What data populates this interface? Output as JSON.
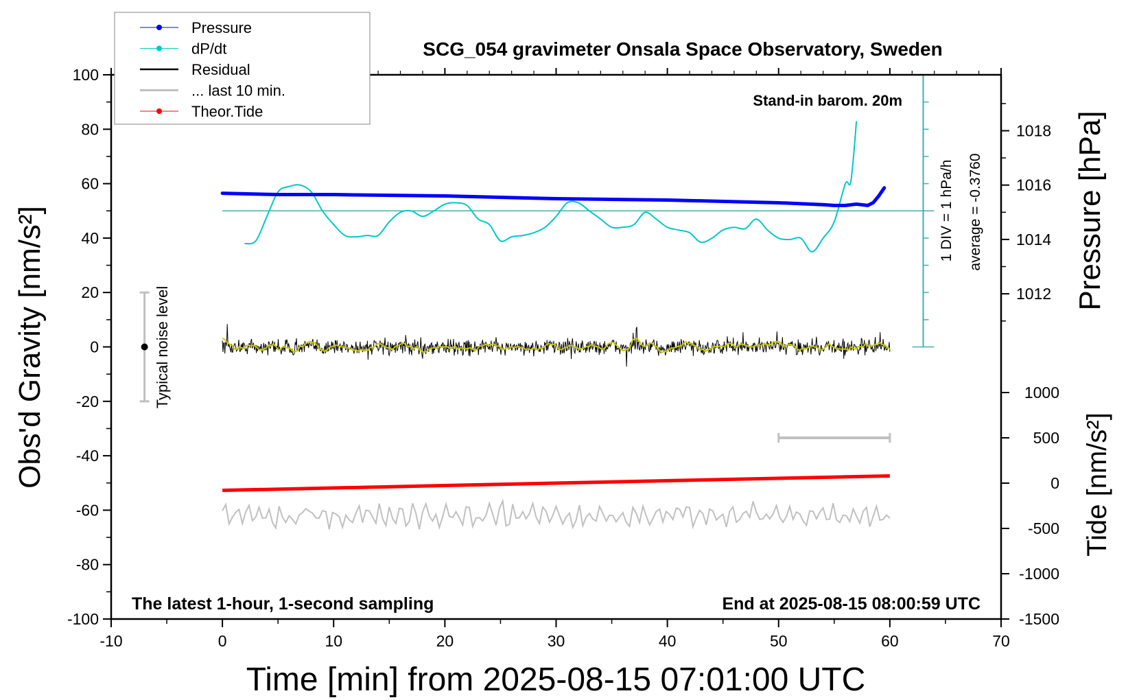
{
  "chart_data": {
    "type": "line",
    "title": "SCG_054 gravimeter Onsala Space Observatory, Sweden",
    "xlabel": "Time [min] from 2025-08-15 07:01:00 UTC",
    "ylabel_left": "Obs'd Gravity [nm/s²]",
    "ylabel_right_top": "Pressure [hPa]",
    "ylabel_right_bottom": "Tide [nm/s²]",
    "xlim": [
      -10,
      70
    ],
    "ylim_left": [
      -100,
      100
    ],
    "x_ticks": [
      "-10",
      "0",
      "10",
      "20",
      "30",
      "40",
      "50",
      "60",
      "70"
    ],
    "y_ticks_left": [
      "100",
      "80",
      "60",
      "40",
      "20",
      "0",
      "-20",
      "-40",
      "-60",
      "-80",
      "-100"
    ],
    "pressure_ticks": [
      "1018",
      "1016",
      "1014",
      "1012"
    ],
    "tide_ticks": [
      "1000",
      "500",
      "0",
      "-500",
      "-1000",
      "-1500"
    ],
    "annotations": {
      "barometer": "Stand-in barom. 20m",
      "div": "1 DIV = 1 hPa/h",
      "average": "average = -0.3760",
      "noise": "Typical noise level",
      "sampling": "The latest 1-hour, 1-second sampling",
      "end": "End at 2025-08-15 08:00:59 UTC"
    },
    "legend": {
      "placement": "top-left",
      "entries": [
        "Pressure",
        "dP/dt",
        "Residual",
        "... last 10 min.",
        "Theor.Tide"
      ]
    },
    "colors": {
      "pressure": "#0000ff",
      "dpdt": "#00c8c8",
      "residual": "#000000",
      "residual_smooth": "#c8c800",
      "last10": "#c0c0c0",
      "tide": "#ff0000",
      "dpdt_axis": "#40b0b0"
    },
    "series": [
      {
        "name": "Pressure",
        "unit": "hPa",
        "x": [
          0,
          5,
          10,
          20,
          30,
          40,
          50,
          54,
          55,
          56,
          57,
          58,
          58.5,
          59,
          59.5
        ],
        "y": [
          1015.7,
          1015.65,
          1015.65,
          1015.6,
          1015.5,
          1015.45,
          1015.35,
          1015.28,
          1015.25,
          1015.25,
          1015.3,
          1015.25,
          1015.35,
          1015.6,
          1015.9
        ]
      },
      {
        "name": "dP/dt",
        "unit": "hPa/h",
        "x": [
          2,
          3,
          4,
          5,
          6,
          7,
          8,
          9,
          10,
          11,
          12,
          13,
          14,
          15,
          16,
          17,
          18,
          19,
          20,
          21,
          22,
          23,
          24,
          25,
          26,
          27,
          28,
          29,
          30,
          31,
          32,
          33,
          34,
          35,
          36,
          37,
          38,
          39,
          40,
          41,
          42,
          43,
          44,
          45,
          46,
          47,
          48,
          49,
          50,
          51,
          52,
          53,
          54,
          55,
          56,
          56.5,
          57
        ],
        "y": [
          -1.58,
          -1.48,
          -0.58,
          0.32,
          0.52,
          0.57,
          0.32,
          -0.38,
          -0.88,
          -1.28,
          -1.33,
          -1.28,
          -1.28,
          -0.78,
          -0.43,
          -0.38,
          -0.58,
          -0.38,
          -0.13,
          -0.08,
          -0.18,
          -0.68,
          -0.88,
          -1.48,
          -1.33,
          -1.28,
          -1.18,
          -0.98,
          -0.58,
          -0.08,
          -0.08,
          -0.38,
          -0.68,
          -0.98,
          -0.98,
          -0.88,
          -0.43,
          -0.68,
          -0.98,
          -1.08,
          -1.18,
          -1.53,
          -1.38,
          -1.08,
          -0.98,
          -1.03,
          -0.68,
          -1.08,
          -1.38,
          -1.43,
          -1.38,
          -1.88,
          -1.38,
          -0.78,
          0.62,
          0.72,
          2.92
        ]
      },
      {
        "name": "Residual",
        "unit": "nm/s²",
        "x_range": [
          0,
          60
        ],
        "mean": 0,
        "approx_range": [
          -7,
          8
        ]
      },
      {
        "name": "... last 10 min.",
        "unit": "nm/s²",
        "x_range": [
          0,
          60
        ],
        "offset": -62,
        "approx_range": [
          -67,
          -56
        ]
      },
      {
        "name": "Theor.Tide",
        "unit": "nm/s²",
        "x": [
          0,
          60
        ],
        "y": [
          -80,
          80
        ]
      }
    ],
    "noise_level_bar": {
      "x": -7,
      "y": [
        -20,
        20
      ],
      "center": 0
    },
    "last10_scale_bar": {
      "x": [
        50,
        60
      ],
      "tide_value": 500
    },
    "dpdt_average_hPa_per_h": -0.376
  }
}
